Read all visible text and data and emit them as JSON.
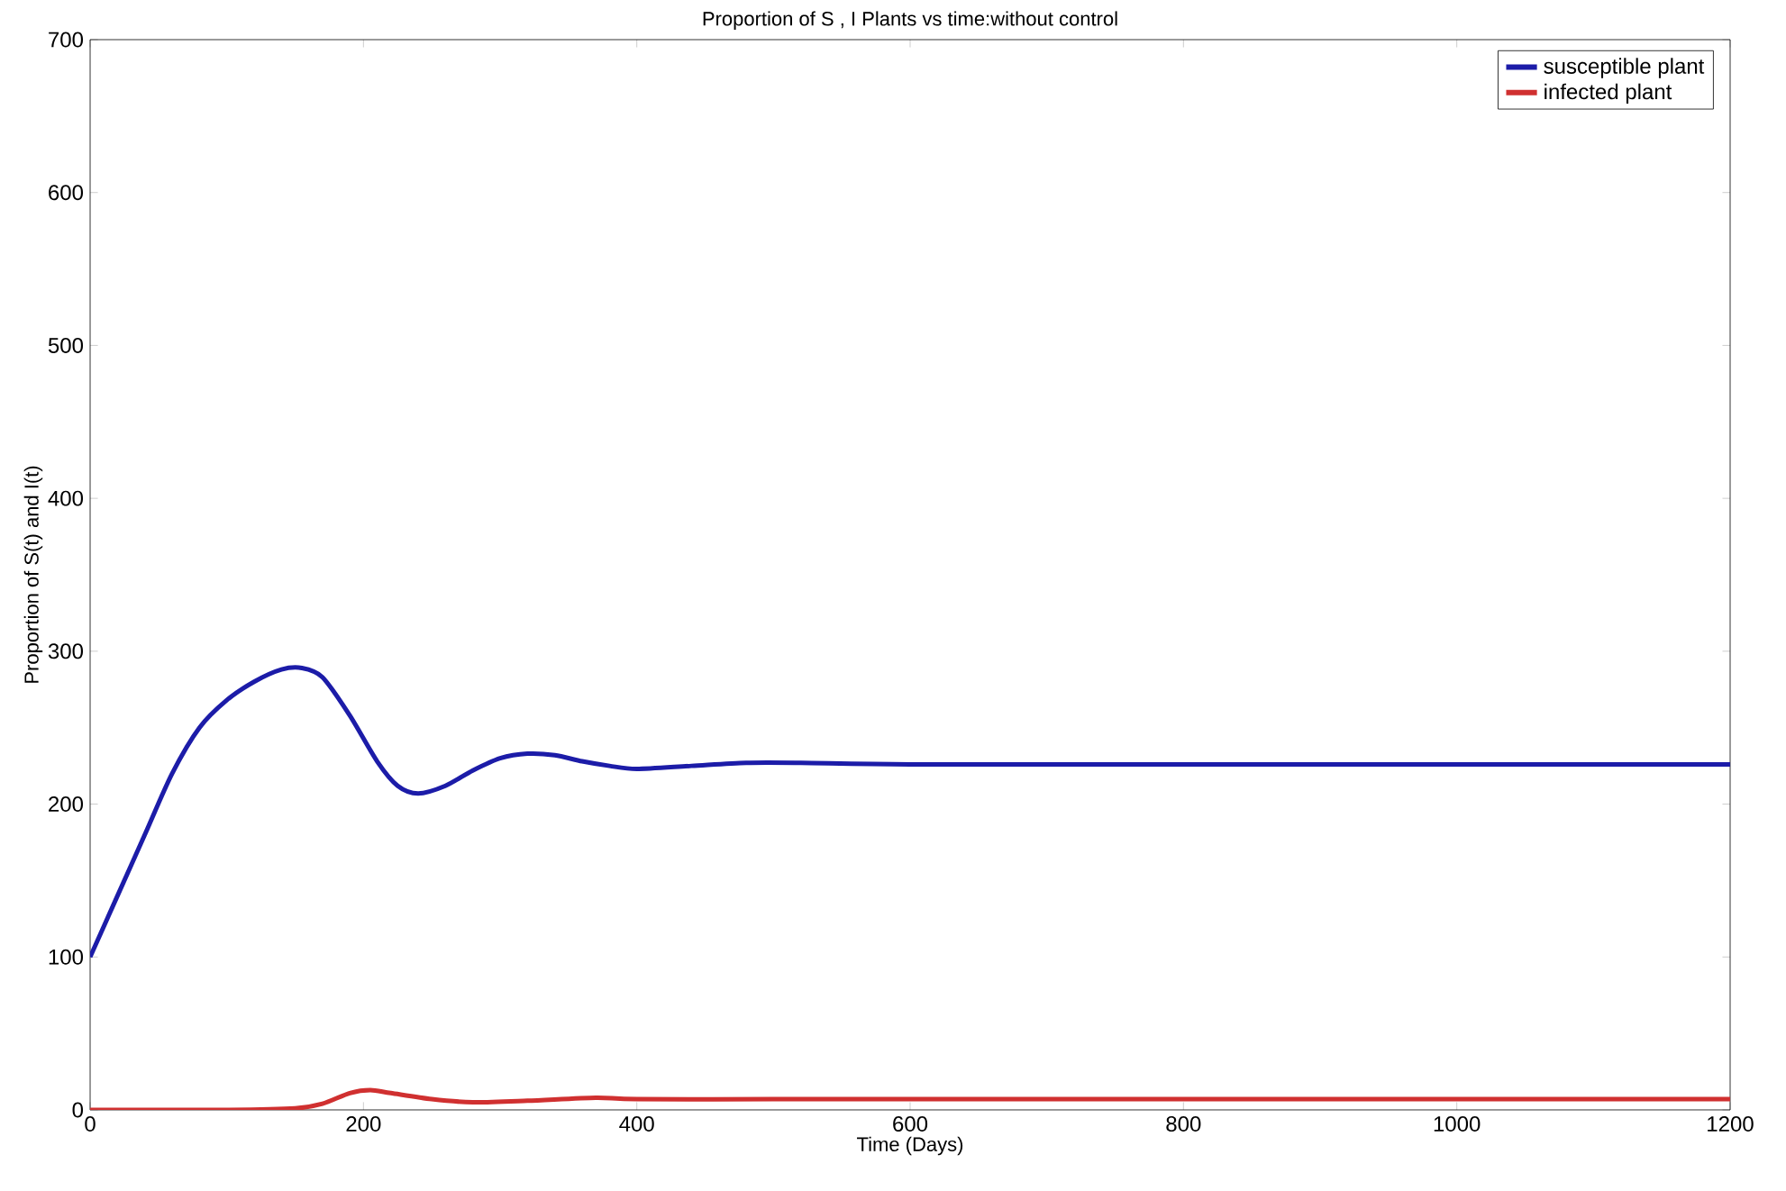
{
  "chart_data": {
    "type": "line",
    "title": "Proportion of S , I Plants vs time:without control",
    "xlabel": "Time (Days)",
    "ylabel": "Proportion of S(t) and I(t)",
    "xlim": [
      0,
      1200
    ],
    "ylim": [
      0,
      700
    ],
    "xticks": [
      0,
      200,
      400,
      600,
      800,
      1000,
      1200
    ],
    "yticks": [
      0,
      100,
      200,
      300,
      400,
      500,
      600,
      700
    ],
    "legend": "top right",
    "marker": "none",
    "series": [
      {
        "name": "susceptible plant",
        "color": "#1c1ca8",
        "x": [
          0,
          20,
          40,
          60,
          80,
          100,
          120,
          140,
          155,
          170,
          190,
          210,
          225,
          240,
          260,
          280,
          300,
          320,
          340,
          360,
          380,
          400,
          440,
          480,
          520,
          600,
          800,
          1000,
          1200
        ],
        "values": [
          100,
          140,
          180,
          220,
          250,
          268,
          280,
          288,
          289,
          283,
          258,
          228,
          212,
          207,
          212,
          222,
          230,
          233,
          232,
          228,
          225,
          223,
          225,
          227,
          227,
          226,
          226,
          226,
          226
        ]
      },
      {
        "name": "infected plant",
        "color": "#d03030",
        "x": [
          0,
          100,
          150,
          170,
          190,
          205,
          220,
          250,
          280,
          320,
          370,
          400,
          500,
          600,
          800,
          1000,
          1200
        ],
        "values": [
          0,
          0,
          1,
          4,
          11,
          13,
          11,
          7,
          5,
          6,
          8,
          7,
          7,
          7,
          7,
          7,
          7
        ]
      }
    ]
  }
}
